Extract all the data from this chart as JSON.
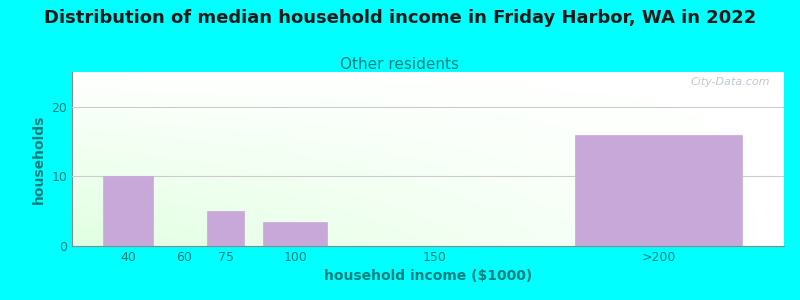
{
  "title": "Distribution of median household income in Friday Harbor, WA in 2022",
  "subtitle": "Other residents",
  "xlabel": "household income ($1000)",
  "ylabel": "households",
  "categories": [
    "40",
    "60",
    "75",
    "100",
    "150",
    ">200"
  ],
  "values": [
    10,
    0,
    5,
    3.5,
    0,
    16
  ],
  "bar_color": "#c8a8d8",
  "background_color": "#00FFFF",
  "title_color": "#1a1a1a",
  "subtitle_color": "#008080",
  "axis_label_color": "#008080",
  "tick_color": "#008080",
  "ylim": [
    0,
    25
  ],
  "yticks": [
    0,
    10,
    20
  ],
  "grid_color": "#cccccc",
  "title_fontsize": 13,
  "subtitle_fontsize": 11,
  "label_fontsize": 10,
  "tick_fontsize": 9,
  "bar_widths": [
    18,
    18,
    13,
    23,
    48,
    60
  ],
  "bar_positions": [
    40,
    60,
    75,
    100,
    150,
    230
  ],
  "watermark": "City-Data.com"
}
